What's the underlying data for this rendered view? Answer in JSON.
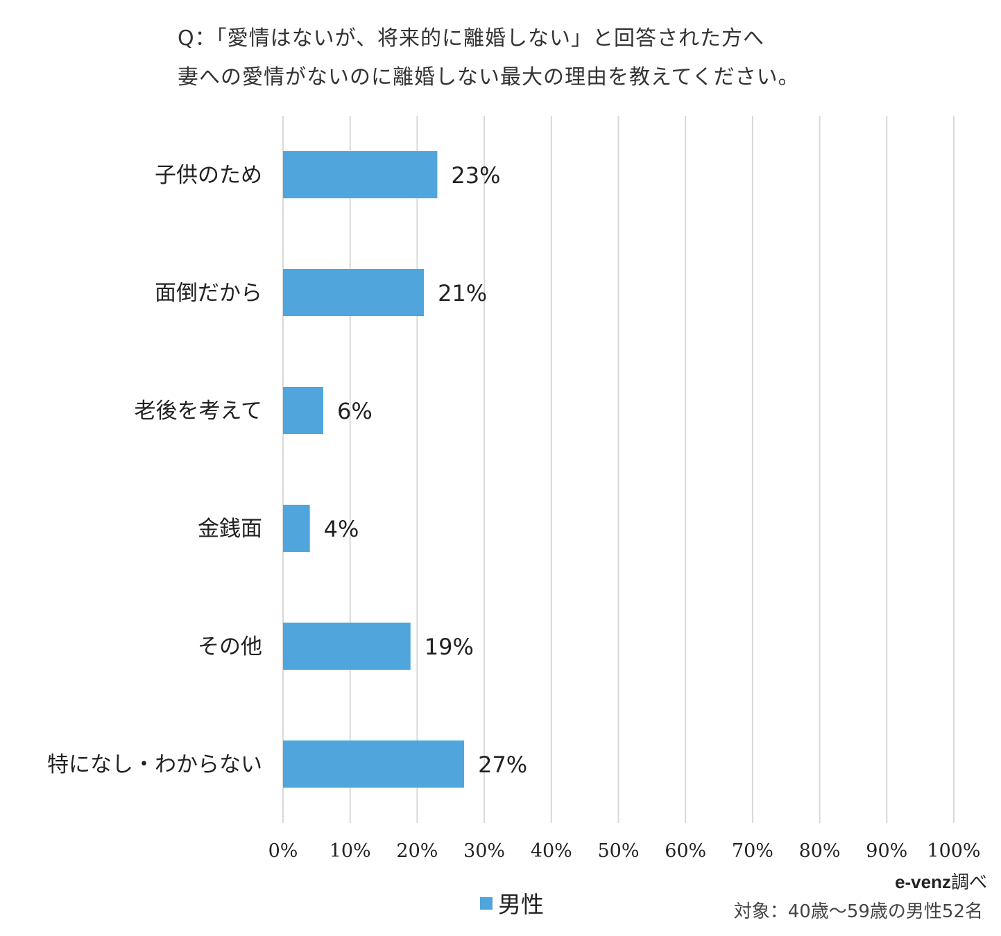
{
  "title": {
    "line1": "Q：「愛情はないが、将来的に離婚しない」と回答された方へ",
    "line2": "妻への愛情がないのに離婚しない最大の理由を教えてください。"
  },
  "colors": {
    "bar": "#4FA5DC",
    "grid": "#D9D9D9"
  },
  "chart_data": {
    "type": "bar",
    "orientation": "horizontal",
    "categories": [
      "子供のため",
      "面倒だから",
      "老後を考えて",
      "金銭面",
      "その他",
      "特になし・わからない"
    ],
    "series": [
      {
        "name": "男性",
        "values": [
          23,
          21,
          6,
          4,
          19,
          27
        ]
      }
    ],
    "data_labels": [
      "23%",
      "21%",
      "6%",
      "4%",
      "19%",
      "27%"
    ],
    "xlim": [
      0,
      100
    ],
    "xticks": [
      "0%",
      "10%",
      "20%",
      "30%",
      "40%",
      "50%",
      "60%",
      "70%",
      "80%",
      "90%",
      "100%"
    ],
    "grid": true,
    "legend_position": "bottom"
  },
  "legend": {
    "label": "男性",
    "icon": "square-swatch"
  },
  "source": {
    "brand": "e-venz",
    "suffix": "調べ"
  },
  "target_text": "対象：40歳〜59歳の男性52名"
}
